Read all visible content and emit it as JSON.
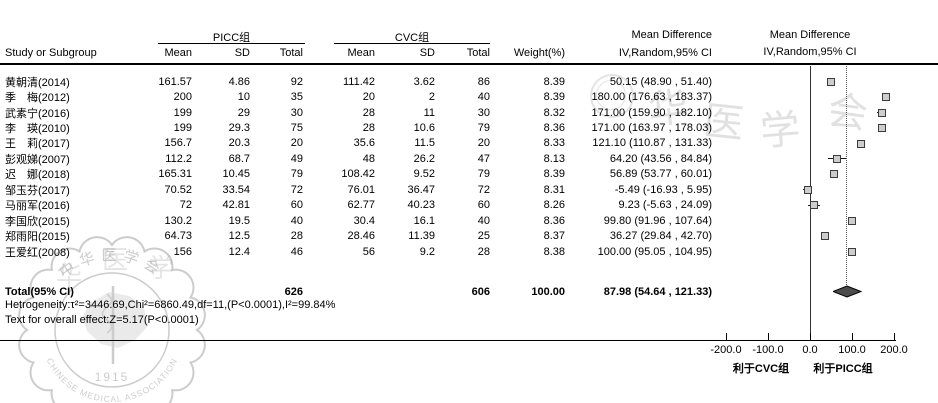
{
  "header": {
    "study_col": "Study or Subgroup",
    "group1": "PICC组",
    "group2": "CVC组",
    "mean": "Mean",
    "sd": "SD",
    "total": "Total",
    "weight": "Weight(%)",
    "md_title": "Mean Difference",
    "md_sub": "IV,Random,95% CI",
    "plot_title": "Mean Difference",
    "plot_sub": "IV,Random,95% CI"
  },
  "table": {
    "rows": [
      {
        "name": "黄朝清(2014)",
        "m1": "161.57",
        "sd1": "4.86",
        "t1": "92",
        "m2": "111.42",
        "sd2": "3.62",
        "t2": "86",
        "w": "8.39",
        "ci": "50.15 (48.90 , 51.40)"
      },
      {
        "name": "季　梅(2012)",
        "m1": "200",
        "sd1": "10",
        "t1": "35",
        "m2": "20",
        "sd2": "2",
        "t2": "40",
        "w": "8.39",
        "ci": "180.00 (176.63 , 183.37)"
      },
      {
        "name": "武素宁(2016)",
        "m1": "199",
        "sd1": "29",
        "t1": "30",
        "m2": "28",
        "sd2": "11",
        "t2": "30",
        "w": "8.32",
        "ci": "171.00 (159.90 , 182.10)"
      },
      {
        "name": "李　瑛(2010)",
        "m1": "199",
        "sd1": "29.3",
        "t1": "75",
        "m2": "28",
        "sd2": "10.6",
        "t2": "79",
        "w": "8.36",
        "ci": "171.00 (163.97 , 178.03)"
      },
      {
        "name": "王　莉(2017)",
        "m1": "156.7",
        "sd1": "20.3",
        "t1": "20",
        "m2": "35.6",
        "sd2": "11.5",
        "t2": "20",
        "w": "8.33",
        "ci": "121.10 (110.87 , 131.33)"
      },
      {
        "name": "彭观娣(2007)",
        "m1": "112.2",
        "sd1": "68.7",
        "t1": "49",
        "m2": "48",
        "sd2": "26.2",
        "t2": "47",
        "w": "8.13",
        "ci": "64.20 (43.56 , 84.84)"
      },
      {
        "name": "迟　娜(2018)",
        "m1": "165.31",
        "sd1": "10.45",
        "t1": "79",
        "m2": "108.42",
        "sd2": "9.52",
        "t2": "79",
        "w": "8.39",
        "ci": "56.89 (53.77 , 60.01)"
      },
      {
        "name": "邹玉芬(2017)",
        "m1": "70.52",
        "sd1": "33.54",
        "t1": "72",
        "m2": "76.01",
        "sd2": "36.47",
        "t2": "72",
        "w": "8.31",
        "ci": "-5.49 (-16.93 , 5.95)"
      },
      {
        "name": "马丽军(2016)",
        "m1": "72",
        "sd1": "42.81",
        "t1": "60",
        "m2": "62.77",
        "sd2": "40.23",
        "t2": "60",
        "w": "8.26",
        "ci": "9.23 (-5.63 , 24.09)"
      },
      {
        "name": "李国欣(2015)",
        "m1": "130.2",
        "sd1": "19.5",
        "t1": "40",
        "m2": "30.4",
        "sd2": "16.1",
        "t2": "40",
        "w": "8.36",
        "ci": "99.80 (91.96 , 107.64)"
      },
      {
        "name": "郑雨阳(2015)",
        "m1": "64.73",
        "sd1": "12.5",
        "t1": "28",
        "m2": "28.46",
        "sd2": "11.39",
        "t2": "25",
        "w": "8.37",
        "ci": "36.27 (29.84 , 42.70)"
      },
      {
        "name": "王爱红(2008)",
        "m1": "156",
        "sd1": "12.4",
        "t1": "46",
        "m2": "56",
        "sd2": "9.2",
        "t2": "28",
        "w": "8.38",
        "ci": "100.00 (95.05 , 104.95)"
      }
    ],
    "total_row": {
      "label": "Total(95% CI)",
      "t1": "626",
      "t2": "606",
      "w": "100.00",
      "ci": "87.98 (54.64 , 121.33)"
    },
    "heterogeneity": "Hetrogeneity:τ²=3446.69,Chi²=6860.49,df=11,(P<0.0001),I²=99.84%",
    "overall_test": "Text for overall effect:Z=5.17(P<0.0001)"
  },
  "axis": {
    "ticks": [
      "-200.0",
      "-100.0",
      "0.0",
      "100.0",
      "200.0"
    ],
    "tick_values": [
      -200,
      -100,
      0,
      100,
      200
    ],
    "favours_left": "利于CVC组",
    "favours_right": "利于PICC组"
  },
  "watermark": {
    "stamp_text_top": "中华医学会",
    "stamp_text_bottom": "CHINESE MEDICAL ASSOCIATION",
    "stamp_year": "1915",
    "script_chars": [
      "华",
      "医",
      "学",
      "会"
    ],
    "small_chars": [
      "华",
      "医",
      "学"
    ]
  },
  "chart_data": {
    "type": "forest",
    "title": "Mean Difference",
    "model": "IV,Random,95% CI",
    "x_axis": {
      "min": -200,
      "max": 200,
      "ticks": [
        -200,
        -100,
        0,
        100,
        200
      ],
      "favours_left": "利于CVC组",
      "favours_right": "利于PICC组"
    },
    "points": [
      {
        "label": "黄朝清(2014)",
        "md": 50.15,
        "lo": 48.9,
        "hi": 51.4,
        "weight_pct": 8.39
      },
      {
        "label": "季　梅(2012)",
        "md": 180.0,
        "lo": 176.63,
        "hi": 183.37,
        "weight_pct": 8.39
      },
      {
        "label": "武素宁(2016)",
        "md": 171.0,
        "lo": 159.9,
        "hi": 182.1,
        "weight_pct": 8.32
      },
      {
        "label": "李　瑛(2010)",
        "md": 171.0,
        "lo": 163.97,
        "hi": 178.03,
        "weight_pct": 8.36
      },
      {
        "label": "王　莉(2017)",
        "md": 121.1,
        "lo": 110.87,
        "hi": 131.33,
        "weight_pct": 8.33
      },
      {
        "label": "彭观娣(2007)",
        "md": 64.2,
        "lo": 43.56,
        "hi": 84.84,
        "weight_pct": 8.13
      },
      {
        "label": "迟　娜(2018)",
        "md": 56.89,
        "lo": 53.77,
        "hi": 60.01,
        "weight_pct": 8.39
      },
      {
        "label": "邹玉芬(2017)",
        "md": -5.49,
        "lo": -16.93,
        "hi": 5.95,
        "weight_pct": 8.31
      },
      {
        "label": "马丽军(2016)",
        "md": 9.23,
        "lo": -5.63,
        "hi": 24.09,
        "weight_pct": 8.26
      },
      {
        "label": "李国欣(2015)",
        "md": 99.8,
        "lo": 91.96,
        "hi": 107.64,
        "weight_pct": 8.36
      },
      {
        "label": "郑雨阳(2015)",
        "md": 36.27,
        "lo": 29.84,
        "hi": 42.7,
        "weight_pct": 8.37
      },
      {
        "label": "王爱红(2008)",
        "md": 100.0,
        "lo": 95.05,
        "hi": 104.95,
        "weight_pct": 8.38
      }
    ],
    "overall": {
      "label": "Total(95% CI)",
      "md": 87.98,
      "lo": 54.64,
      "hi": 121.33,
      "picc_total": 626,
      "cvc_total": 606,
      "weight_pct": 100.0
    },
    "heterogeneity": {
      "tau2": 3446.69,
      "chi2": 6860.49,
      "df": 11,
      "p": "<0.0001",
      "i2_pct": 99.84
    },
    "overall_effect_test": {
      "z": 5.17,
      "p": "<0.0001"
    }
  }
}
